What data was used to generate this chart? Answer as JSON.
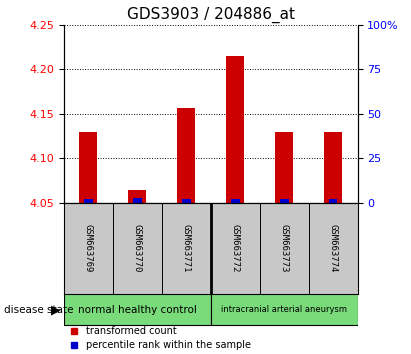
{
  "title": "GDS3903 / 204886_at",
  "samples": [
    "GSM663769",
    "GSM663770",
    "GSM663771",
    "GSM663772",
    "GSM663773",
    "GSM663774"
  ],
  "transformed_counts": [
    4.13,
    4.065,
    4.157,
    4.215,
    4.13,
    4.13
  ],
  "percentile_ranks": [
    2.0,
    2.5,
    2.0,
    2.0,
    2.0,
    2.0
  ],
  "ylim_left": [
    4.05,
    4.25
  ],
  "ylim_right": [
    0,
    100
  ],
  "yticks_left": [
    4.05,
    4.1,
    4.15,
    4.2,
    4.25
  ],
  "yticks_right": [
    0,
    25,
    50,
    75,
    100
  ],
  "bar_color_red": "#cc0000",
  "bar_color_blue": "#0000cc",
  "bar_width": 0.35,
  "grid_color": "black",
  "background_color": "#ffffff",
  "sample_area_color": "#c8c8c8",
  "group1_color": "#7adb7a",
  "group2_color": "#7adb7a",
  "group1_label": "normal healthy control",
  "group2_label": "intracranial arterial aneurysm",
  "legend_red_label": "transformed count",
  "legend_blue_label": "percentile rank within the sample",
  "disease_state_label": "disease state",
  "title_fontsize": 11,
  "tick_fontsize": 8,
  "label_fontsize": 7.5
}
